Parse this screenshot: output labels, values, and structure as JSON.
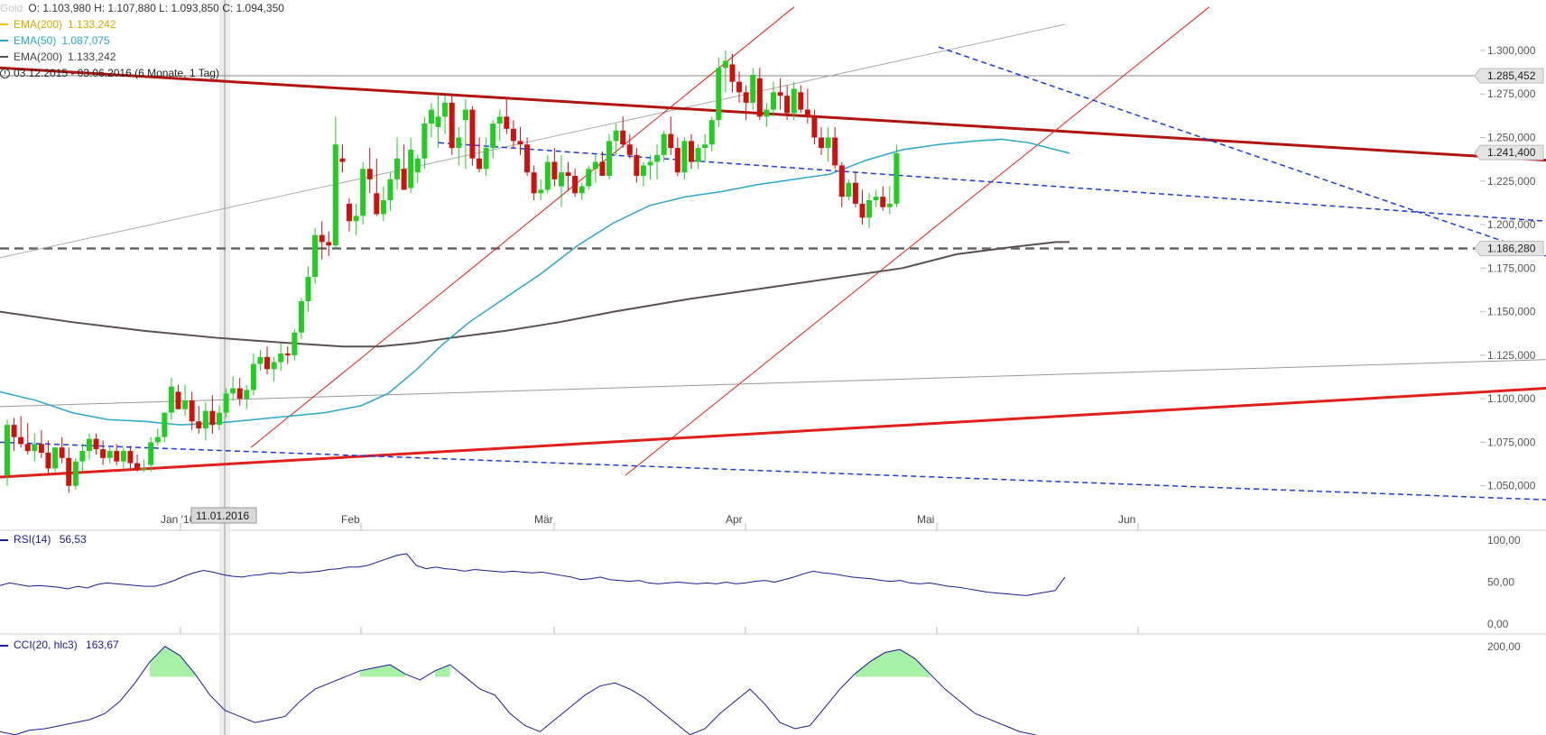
{
  "header": {
    "symbol": "Gold",
    "ohlc": "O: 1.103,980  H: 1.107,880  L: 1.093,850  C: 1.094,350",
    "indicators": [
      {
        "label": "EMA(200)",
        "value": "1.133,242",
        "color": "#f5c000"
      },
      {
        "label": "EMA(50)",
        "value": "1.087,075",
        "color": "#2aa6c9"
      },
      {
        "label": "EMA(200)",
        "value": "1.133,242",
        "color": "#555555"
      }
    ],
    "range": "03.12.2015 - 03.06.2016 (6 Monate, 1 Tag)"
  },
  "crosshair_label": "11.01.2016",
  "price_axis": {
    "ticks": [
      "1.300,000",
      "1.275,000",
      "1.250,000",
      "1.225,000",
      "1.200,000",
      "1.175,000",
      "1.150,000",
      "1.125,000",
      "1.100,000",
      "1.075,000",
      "1.050,000"
    ],
    "markers": [
      "1.285,452",
      "1.241,400",
      "1.186,280"
    ]
  },
  "month_labels": [
    "Jan '16",
    "Feb",
    "Mär",
    "Apr",
    "Mai",
    "Jun"
  ],
  "rsi": {
    "label": "RSI(14)",
    "value": "56,53",
    "ticks": [
      "100,00",
      "50,00",
      "0,00"
    ]
  },
  "cci": {
    "label": "CCI(20, hlc3)",
    "value": "163,67",
    "ticks": [
      "200,00"
    ]
  },
  "colors": {
    "up": "#22cc22",
    "down": "#cc1111",
    "ema50": "#2aa6c9",
    "ema200": "#5a5050",
    "trend_red": "#e0201a",
    "trend_dark": "#b01510",
    "blue_dash": "#1a3adf",
    "indicator": "#1a1a99",
    "fill": "#90ee90"
  },
  "chart_data": [
    {
      "type": "candlestick",
      "title": "Gold",
      "ylim": [
        1040,
        1315
      ],
      "x_start": "2015-12-03",
      "x_end": "2016-06-03",
      "candles": [
        [
          1056,
          1088,
          1050,
          1085
        ],
        [
          1085,
          1089,
          1070,
          1078
        ],
        [
          1078,
          1090,
          1072,
          1074
        ],
        [
          1074,
          1086,
          1068,
          1070
        ],
        [
          1070,
          1080,
          1064,
          1074
        ],
        [
          1074,
          1082,
          1066,
          1069
        ],
        [
          1069,
          1076,
          1056,
          1060
        ],
        [
          1060,
          1072,
          1058,
          1072
        ],
        [
          1072,
          1078,
          1063,
          1066
        ],
        [
          1066,
          1072,
          1046,
          1050
        ],
        [
          1050,
          1066,
          1048,
          1064
        ],
        [
          1064,
          1074,
          1058,
          1070
        ],
        [
          1070,
          1080,
          1065,
          1077
        ],
        [
          1077,
          1080,
          1068,
          1071
        ],
        [
          1071,
          1076,
          1062,
          1066
        ],
        [
          1066,
          1072,
          1063,
          1070
        ],
        [
          1070,
          1074,
          1062,
          1064
        ],
        [
          1064,
          1072,
          1060,
          1070
        ],
        [
          1070,
          1073,
          1060,
          1063
        ],
        [
          1063,
          1068,
          1058,
          1060
        ],
        [
          1060,
          1065,
          1058,
          1060
        ],
        [
          1062,
          1078,
          1058,
          1075
        ],
        [
          1075,
          1083,
          1073,
          1078
        ],
        [
          1078,
          1090,
          1075,
          1092
        ],
        [
          1092,
          1112,
          1088,
          1107
        ],
        [
          1104,
          1108,
          1094,
          1094
        ],
        [
          1094,
          1108,
          1090,
          1099
        ],
        [
          1099,
          1104,
          1082,
          1087
        ],
        [
          1087,
          1096,
          1080,
          1083
        ],
        [
          1083,
          1098,
          1076,
          1093
        ],
        [
          1093,
          1102,
          1080,
          1085
        ],
        [
          1085,
          1096,
          1082,
          1092
        ],
        [
          1092,
          1106,
          1089,
          1103
        ],
        [
          1103,
          1113,
          1099,
          1106
        ],
        [
          1106,
          1112,
          1096,
          1100
        ],
        [
          1100,
          1108,
          1094,
          1105
        ],
        [
          1105,
          1126,
          1102,
          1120
        ],
        [
          1120,
          1128,
          1116,
          1124
        ],
        [
          1124,
          1130,
          1114,
          1117
        ],
        [
          1117,
          1124,
          1110,
          1121
        ],
        [
          1121,
          1132,
          1116,
          1126
        ],
        [
          1126,
          1130,
          1120,
          1125
        ],
        [
          1125,
          1140,
          1122,
          1138
        ],
        [
          1138,
          1158,
          1134,
          1156
        ],
        [
          1156,
          1176,
          1150,
          1170
        ],
        [
          1170,
          1198,
          1166,
          1194
        ],
        [
          1194,
          1202,
          1180,
          1190
        ],
        [
          1190,
          1196,
          1182,
          1188
        ],
        [
          1188,
          1262,
          1186,
          1246
        ],
        [
          1238,
          1246,
          1230,
          1236
        ],
        [
          1212,
          1215,
          1196,
          1202
        ],
        [
          1202,
          1212,
          1194,
          1205
        ],
        [
          1205,
          1236,
          1200,
          1232
        ],
        [
          1232,
          1244,
          1218,
          1226
        ],
        [
          1218,
          1238,
          1205,
          1206
        ],
        [
          1206,
          1222,
          1202,
          1214
        ],
        [
          1214,
          1230,
          1208,
          1226
        ],
        [
          1226,
          1250,
          1220,
          1238
        ],
        [
          1232,
          1246,
          1220,
          1220
        ],
        [
          1221,
          1250,
          1218,
          1243
        ],
        [
          1230,
          1240,
          1224,
          1238
        ],
        [
          1238,
          1262,
          1232,
          1258
        ],
        [
          1258,
          1270,
          1250,
          1266
        ],
        [
          1256,
          1274,
          1244,
          1262
        ],
        [
          1262,
          1274,
          1252,
          1270
        ],
        [
          1270,
          1274,
          1240,
          1244
        ],
        [
          1244,
          1256,
          1234,
          1250
        ],
        [
          1260,
          1272,
          1232,
          1266
        ],
        [
          1266,
          1268,
          1234,
          1238
        ],
        [
          1238,
          1250,
          1230,
          1232
        ],
        [
          1232,
          1250,
          1228,
          1244
        ],
        [
          1244,
          1260,
          1238,
          1258
        ],
        [
          1258,
          1266,
          1248,
          1262
        ],
        [
          1262,
          1272,
          1252,
          1255
        ],
        [
          1255,
          1260,
          1244,
          1248
        ],
        [
          1248,
          1256,
          1240,
          1246
        ],
        [
          1246,
          1250,
          1228,
          1230
        ],
        [
          1230,
          1234,
          1214,
          1218
        ],
        [
          1218,
          1226,
          1214,
          1220
        ],
        [
          1220,
          1240,
          1218,
          1236
        ],
        [
          1236,
          1244,
          1222,
          1226
        ],
        [
          1222,
          1240,
          1210,
          1230
        ],
        [
          1230,
          1236,
          1220,
          1228
        ],
        [
          1228,
          1232,
          1216,
          1218
        ],
        [
          1218,
          1224,
          1214,
          1222
        ],
        [
          1222,
          1234,
          1220,
          1232
        ],
        [
          1232,
          1240,
          1224,
          1236
        ],
        [
          1236,
          1242,
          1228,
          1228
        ],
        [
          1228,
          1252,
          1226,
          1248
        ],
        [
          1248,
          1258,
          1240,
          1254
        ],
        [
          1254,
          1262,
          1244,
          1246
        ],
        [
          1246,
          1252,
          1238,
          1240
        ],
        [
          1240,
          1244,
          1224,
          1228
        ],
        [
          1228,
          1236,
          1222,
          1234
        ],
        [
          1234,
          1240,
          1226,
          1236
        ],
        [
          1236,
          1246,
          1226,
          1240
        ],
        [
          1240,
          1254,
          1236,
          1252
        ],
        [
          1252,
          1262,
          1240,
          1244
        ],
        [
          1244,
          1250,
          1228,
          1230
        ],
        [
          1230,
          1250,
          1226,
          1248
        ],
        [
          1248,
          1252,
          1232,
          1236
        ],
        [
          1236,
          1246,
          1232,
          1244
        ],
        [
          1244,
          1252,
          1236,
          1246
        ],
        [
          1246,
          1262,
          1242,
          1260
        ],
        [
          1260,
          1296,
          1256,
          1290
        ],
        [
          1290,
          1300,
          1276,
          1294
        ],
        [
          1292,
          1298,
          1276,
          1282
        ],
        [
          1282,
          1288,
          1270,
          1276
        ],
        [
          1276,
          1280,
          1260,
          1270
        ],
        [
          1270,
          1290,
          1266,
          1286
        ],
        [
          1284,
          1290,
          1260,
          1262
        ],
        [
          1262,
          1270,
          1256,
          1266
        ],
        [
          1266,
          1282,
          1262,
          1276
        ],
        [
          1276,
          1284,
          1266,
          1274
        ],
        [
          1274,
          1280,
          1260,
          1264
        ],
        [
          1264,
          1282,
          1260,
          1278
        ],
        [
          1276,
          1280,
          1264,
          1266
        ],
        [
          1266,
          1278,
          1258,
          1262
        ],
        [
          1262,
          1266,
          1246,
          1250
        ],
        [
          1250,
          1256,
          1240,
          1244
        ],
        [
          1244,
          1256,
          1236,
          1250
        ],
        [
          1250,
          1256,
          1232,
          1234
        ],
        [
          1234,
          1236,
          1210,
          1216
        ],
        [
          1216,
          1226,
          1214,
          1224
        ],
        [
          1224,
          1230,
          1210,
          1212
        ],
        [
          1212,
          1220,
          1200,
          1204
        ],
        [
          1204,
          1218,
          1198,
          1214
        ],
        [
          1214,
          1220,
          1210,
          1216
        ],
        [
          1216,
          1222,
          1208,
          1210
        ],
        [
          1210,
          1222,
          1206,
          1212
        ],
        [
          1212,
          1246,
          1210,
          1241
        ]
      ],
      "ema50": [
        [
          0,
          1104
        ],
        [
          40,
          1099
        ],
        [
          80,
          1092
        ],
        [
          120,
          1088
        ],
        [
          160,
          1087
        ],
        [
          200,
          1085
        ],
        [
          240,
          1086
        ],
        [
          280,
          1088
        ],
        [
          320,
          1090
        ],
        [
          360,
          1092
        ],
        [
          400,
          1096
        ],
        [
          430,
          1103
        ],
        [
          460,
          1116
        ],
        [
          490,
          1131
        ],
        [
          520,
          1144
        ],
        [
          560,
          1158
        ],
        [
          600,
          1172
        ],
        [
          640,
          1188
        ],
        [
          680,
          1201
        ],
        [
          720,
          1211
        ],
        [
          760,
          1216
        ],
        [
          800,
          1219
        ],
        [
          840,
          1223
        ],
        [
          880,
          1226
        ],
        [
          920,
          1229
        ],
        [
          960,
          1237
        ],
        [
          1000,
          1243
        ],
        [
          1040,
          1246
        ],
        [
          1080,
          1248
        ],
        [
          1110,
          1249
        ],
        [
          1140,
          1247
        ],
        [
          1170,
          1243
        ],
        [
          1185,
          1241
        ]
      ],
      "ema200": [
        [
          0,
          1150
        ],
        [
          80,
          1144
        ],
        [
          160,
          1139
        ],
        [
          240,
          1135
        ],
        [
          320,
          1132
        ],
        [
          380,
          1130
        ],
        [
          420,
          1130
        ],
        [
          460,
          1132
        ],
        [
          500,
          1135
        ],
        [
          560,
          1139
        ],
        [
          620,
          1144
        ],
        [
          680,
          1150
        ],
        [
          760,
          1157
        ],
        [
          840,
          1163
        ],
        [
          920,
          1169
        ],
        [
          1000,
          1175
        ],
        [
          1060,
          1183
        ],
        [
          1120,
          1187
        ],
        [
          1170,
          1190
        ],
        [
          1185,
          1190
        ]
      ],
      "levels": [
        1285.452,
        1241.4,
        1186.28
      ]
    },
    {
      "type": "line",
      "title": "RSI(14)",
      "ylim": [
        0,
        100
      ],
      "values": [
        46,
        49,
        47,
        45,
        46,
        45,
        44,
        42,
        45,
        43,
        47,
        49,
        48,
        47,
        46,
        45,
        45,
        48,
        52,
        57,
        61,
        64,
        62,
        59,
        57,
        56,
        58,
        59,
        61,
        60,
        62,
        61,
        62,
        63,
        65,
        66,
        68,
        68,
        70,
        74,
        78,
        82,
        84,
        70,
        66,
        68,
        66,
        65,
        63,
        65,
        64,
        63,
        62,
        63,
        62,
        61,
        62,
        60,
        58,
        56,
        53,
        54,
        56,
        53,
        52,
        51,
        52,
        49,
        48,
        49,
        50,
        49,
        48,
        49,
        48,
        50,
        48,
        49,
        51,
        52,
        50,
        53,
        56,
        60,
        63,
        61,
        60,
        58,
        56,
        55,
        54,
        52,
        51,
        52,
        49,
        48,
        49,
        47,
        45,
        44,
        42,
        40,
        38,
        37,
        36,
        35,
        34,
        36,
        38,
        40,
        56
      ]
    },
    {
      "type": "line",
      "title": "CCI(20, hlc3)",
      "ylim": [
        -150,
        300
      ],
      "values": [
        -80,
        -90,
        -75,
        -70,
        -60,
        -50,
        -40,
        -20,
        20,
        80,
        150,
        200,
        170,
        110,
        40,
        -10,
        -30,
        -50,
        -40,
        -30,
        20,
        60,
        80,
        100,
        120,
        130,
        140,
        110,
        90,
        120,
        140,
        100,
        60,
        40,
        -20,
        -60,
        -80,
        -40,
        0,
        40,
        70,
        80,
        60,
        30,
        -10,
        -50,
        -90,
        -70,
        -20,
        20,
        60,
        10,
        -50,
        -70,
        -60,
        0,
        60,
        110,
        150,
        180,
        190,
        160,
        110,
        60,
        20,
        -20,
        -40,
        -60,
        -80,
        -90,
        -110,
        -120
      ]
    }
  ]
}
